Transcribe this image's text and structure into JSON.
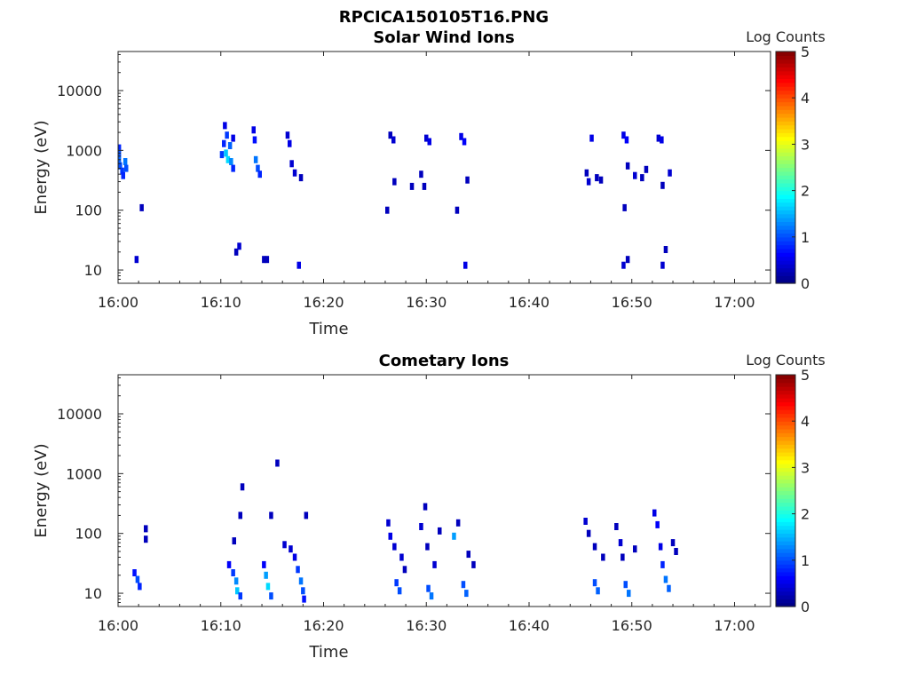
{
  "figure_title": "RPCICA150105T16.PNG",
  "chart_data": [
    {
      "type": "heatmap",
      "title": "Solar Wind Ions",
      "xlabel": "Time",
      "ylabel": "Energy (eV)",
      "x_ticks": [
        "16:00",
        "16:10",
        "16:20",
        "16:30",
        "16:40",
        "16:50",
        "17:00"
      ],
      "x_range_minutes": [
        0,
        63.5
      ],
      "y_scale": "log",
      "y_ticks": [
        "10",
        "100",
        "1000",
        "10000"
      ],
      "y_range": [
        6,
        45000
      ],
      "colorbar": {
        "label": "Log Counts",
        "range": [
          0,
          5
        ],
        "ticks": [
          "0",
          "1",
          "2",
          "3",
          "4",
          "5"
        ]
      },
      "grid": false,
      "cells": [
        {
          "t": 0.1,
          "e": 1100,
          "v": 0.8
        },
        {
          "t": 0.1,
          "e": 900,
          "v": 1.0
        },
        {
          "t": 0.1,
          "e": 700,
          "v": 1.1
        },
        {
          "t": 0.2,
          "e": 550,
          "v": 1.0
        },
        {
          "t": 0.4,
          "e": 450,
          "v": 0.9
        },
        {
          "t": 0.5,
          "e": 380,
          "v": 0.8
        },
        {
          "t": 0.7,
          "e": 650,
          "v": 1.2
        },
        {
          "t": 0.8,
          "e": 500,
          "v": 1.0
        },
        {
          "t": 2.3,
          "e": 110,
          "v": 0.3
        },
        {
          "t": 1.8,
          "e": 15,
          "v": 0.4
        },
        {
          "t": 10.1,
          "e": 850,
          "v": 0.9
        },
        {
          "t": 10.3,
          "e": 1300,
          "v": 0.8
        },
        {
          "t": 10.4,
          "e": 2600,
          "v": 0.5
        },
        {
          "t": 10.5,
          "e": 900,
          "v": 1.6
        },
        {
          "t": 10.6,
          "e": 1800,
          "v": 0.9
        },
        {
          "t": 10.7,
          "e": 700,
          "v": 1.7
        },
        {
          "t": 10.9,
          "e": 1200,
          "v": 1.1
        },
        {
          "t": 11.0,
          "e": 650,
          "v": 1.3
        },
        {
          "t": 11.2,
          "e": 500,
          "v": 0.8
        },
        {
          "t": 11.2,
          "e": 1600,
          "v": 0.5
        },
        {
          "t": 11.5,
          "e": 20,
          "v": 0.3
        },
        {
          "t": 11.8,
          "e": 25,
          "v": 0.4
        },
        {
          "t": 13.2,
          "e": 2200,
          "v": 0.5
        },
        {
          "t": 13.3,
          "e": 1500,
          "v": 0.7
        },
        {
          "t": 13.4,
          "e": 700,
          "v": 1.2
        },
        {
          "t": 13.6,
          "e": 500,
          "v": 1.0
        },
        {
          "t": 13.8,
          "e": 400,
          "v": 0.8
        },
        {
          "t": 14.2,
          "e": 15,
          "v": 0.3
        },
        {
          "t": 14.5,
          "e": 15,
          "v": 0.3
        },
        {
          "t": 16.5,
          "e": 1800,
          "v": 0.4
        },
        {
          "t": 16.7,
          "e": 1300,
          "v": 0.5
        },
        {
          "t": 16.9,
          "e": 600,
          "v": 0.4
        },
        {
          "t": 17.2,
          "e": 420,
          "v": 0.4
        },
        {
          "t": 17.6,
          "e": 12,
          "v": 0.5
        },
        {
          "t": 17.8,
          "e": 350,
          "v": 0.3
        },
        {
          "t": 26.2,
          "e": 100,
          "v": 0.3
        },
        {
          "t": 26.5,
          "e": 1800,
          "v": 0.3
        },
        {
          "t": 26.8,
          "e": 1500,
          "v": 0.4
        },
        {
          "t": 26.9,
          "e": 300,
          "v": 0.3
        },
        {
          "t": 28.6,
          "e": 250,
          "v": 0.3
        },
        {
          "t": 29.5,
          "e": 400,
          "v": 0.3
        },
        {
          "t": 29.8,
          "e": 250,
          "v": 0.3
        },
        {
          "t": 30.0,
          "e": 1600,
          "v": 0.4
        },
        {
          "t": 30.3,
          "e": 1400,
          "v": 0.5
        },
        {
          "t": 33.0,
          "e": 100,
          "v": 0.3
        },
        {
          "t": 33.4,
          "e": 1700,
          "v": 0.5
        },
        {
          "t": 33.7,
          "e": 1400,
          "v": 0.6
        },
        {
          "t": 34.0,
          "e": 320,
          "v": 0.3
        },
        {
          "t": 33.8,
          "e": 12,
          "v": 0.5
        },
        {
          "t": 45.6,
          "e": 420,
          "v": 0.3
        },
        {
          "t": 45.8,
          "e": 300,
          "v": 0.4
        },
        {
          "t": 46.1,
          "e": 1600,
          "v": 0.5
        },
        {
          "t": 46.6,
          "e": 350,
          "v": 0.3
        },
        {
          "t": 47.0,
          "e": 320,
          "v": 0.3
        },
        {
          "t": 49.2,
          "e": 1800,
          "v": 0.5
        },
        {
          "t": 49.5,
          "e": 1500,
          "v": 0.6
        },
        {
          "t": 49.6,
          "e": 550,
          "v": 0.3
        },
        {
          "t": 49.3,
          "e": 110,
          "v": 0.3
        },
        {
          "t": 49.2,
          "e": 12,
          "v": 0.4
        },
        {
          "t": 49.6,
          "e": 15,
          "v": 0.3
        },
        {
          "t": 50.3,
          "e": 380,
          "v": 0.4
        },
        {
          "t": 51.0,
          "e": 350,
          "v": 0.3
        },
        {
          "t": 51.4,
          "e": 480,
          "v": 0.3
        },
        {
          "t": 52.6,
          "e": 1600,
          "v": 0.4
        },
        {
          "t": 52.9,
          "e": 1500,
          "v": 0.5
        },
        {
          "t": 53.0,
          "e": 260,
          "v": 0.3
        },
        {
          "t": 53.0,
          "e": 12,
          "v": 0.4
        },
        {
          "t": 53.3,
          "e": 22,
          "v": 0.3
        },
        {
          "t": 53.7,
          "e": 420,
          "v": 0.4
        }
      ]
    },
    {
      "type": "heatmap",
      "title": "Cometary Ions",
      "xlabel": "Time",
      "ylabel": "Energy (eV)",
      "x_ticks": [
        "16:00",
        "16:10",
        "16:20",
        "16:30",
        "16:40",
        "16:50",
        "17:00"
      ],
      "x_range_minutes": [
        0,
        63.5
      ],
      "y_scale": "log",
      "y_ticks": [
        "10",
        "100",
        "1000",
        "10000"
      ],
      "y_range": [
        6,
        45000
      ],
      "colorbar": {
        "label": "Log Counts",
        "range": [
          0,
          5
        ],
        "ticks": [
          "0",
          "1",
          "2",
          "3",
          "4",
          "5"
        ]
      },
      "grid": false,
      "cells": [
        {
          "t": 1.6,
          "e": 22,
          "v": 0.7
        },
        {
          "t": 1.9,
          "e": 17,
          "v": 1.0
        },
        {
          "t": 2.1,
          "e": 13,
          "v": 0.8
        },
        {
          "t": 2.7,
          "e": 120,
          "v": 0.3
        },
        {
          "t": 2.7,
          "e": 80,
          "v": 0.3
        },
        {
          "t": 10.8,
          "e": 30,
          "v": 0.6
        },
        {
          "t": 11.2,
          "e": 22,
          "v": 0.9
        },
        {
          "t": 11.5,
          "e": 16,
          "v": 1.3
        },
        {
          "t": 11.6,
          "e": 11,
          "v": 1.6
        },
        {
          "t": 11.3,
          "e": 75,
          "v": 0.3
        },
        {
          "t": 11.9,
          "e": 9,
          "v": 0.9
        },
        {
          "t": 12.1,
          "e": 600,
          "v": 0.3
        },
        {
          "t": 11.9,
          "e": 200,
          "v": 0.3
        },
        {
          "t": 14.2,
          "e": 30,
          "v": 0.6
        },
        {
          "t": 14.4,
          "e": 20,
          "v": 1.4
        },
        {
          "t": 14.6,
          "e": 13,
          "v": 1.7
        },
        {
          "t": 14.9,
          "e": 9,
          "v": 1.0
        },
        {
          "t": 14.9,
          "e": 200,
          "v": 0.3
        },
        {
          "t": 15.5,
          "e": 1500,
          "v": 0.3
        },
        {
          "t": 16.2,
          "e": 65,
          "v": 0.4
        },
        {
          "t": 16.8,
          "e": 55,
          "v": 0.4
        },
        {
          "t": 17.2,
          "e": 40,
          "v": 0.5
        },
        {
          "t": 17.5,
          "e": 25,
          "v": 0.9
        },
        {
          "t": 17.8,
          "e": 16,
          "v": 1.2
        },
        {
          "t": 18.0,
          "e": 11,
          "v": 1.0
        },
        {
          "t": 18.1,
          "e": 8,
          "v": 0.7
        },
        {
          "t": 18.3,
          "e": 200,
          "v": 0.3
        },
        {
          "t": 26.3,
          "e": 150,
          "v": 0.4
        },
        {
          "t": 26.5,
          "e": 90,
          "v": 0.5
        },
        {
          "t": 26.9,
          "e": 60,
          "v": 0.4
        },
        {
          "t": 27.1,
          "e": 15,
          "v": 0.9
        },
        {
          "t": 27.4,
          "e": 11,
          "v": 1.0
        },
        {
          "t": 27.6,
          "e": 40,
          "v": 0.4
        },
        {
          "t": 27.9,
          "e": 25,
          "v": 0.3
        },
        {
          "t": 29.5,
          "e": 130,
          "v": 0.4
        },
        {
          "t": 29.9,
          "e": 280,
          "v": 0.3
        },
        {
          "t": 30.1,
          "e": 60,
          "v": 0.3
        },
        {
          "t": 30.2,
          "e": 12,
          "v": 1.0
        },
        {
          "t": 30.5,
          "e": 9,
          "v": 1.2
        },
        {
          "t": 30.8,
          "e": 30,
          "v": 0.4
        },
        {
          "t": 31.3,
          "e": 110,
          "v": 0.3
        },
        {
          "t": 32.7,
          "e": 90,
          "v": 1.4
        },
        {
          "t": 33.1,
          "e": 150,
          "v": 0.3
        },
        {
          "t": 33.6,
          "e": 14,
          "v": 1.0
        },
        {
          "t": 33.9,
          "e": 10,
          "v": 1.1
        },
        {
          "t": 34.1,
          "e": 45,
          "v": 0.3
        },
        {
          "t": 34.6,
          "e": 30,
          "v": 0.3
        },
        {
          "t": 45.5,
          "e": 160,
          "v": 0.4
        },
        {
          "t": 45.8,
          "e": 100,
          "v": 0.3
        },
        {
          "t": 46.4,
          "e": 60,
          "v": 0.3
        },
        {
          "t": 46.4,
          "e": 15,
          "v": 1.0
        },
        {
          "t": 46.7,
          "e": 11,
          "v": 1.1
        },
        {
          "t": 47.2,
          "e": 40,
          "v": 0.3
        },
        {
          "t": 48.5,
          "e": 130,
          "v": 0.3
        },
        {
          "t": 48.9,
          "e": 70,
          "v": 0.4
        },
        {
          "t": 49.1,
          "e": 40,
          "v": 0.3
        },
        {
          "t": 49.4,
          "e": 14,
          "v": 1.0
        },
        {
          "t": 49.7,
          "e": 10,
          "v": 1.2
        },
        {
          "t": 50.3,
          "e": 55,
          "v": 0.3
        },
        {
          "t": 52.2,
          "e": 220,
          "v": 0.5
        },
        {
          "t": 52.5,
          "e": 140,
          "v": 0.6
        },
        {
          "t": 52.8,
          "e": 60,
          "v": 0.5
        },
        {
          "t": 53.0,
          "e": 30,
          "v": 0.8
        },
        {
          "t": 53.3,
          "e": 17,
          "v": 1.2
        },
        {
          "t": 53.6,
          "e": 12,
          "v": 1.1
        },
        {
          "t": 54.0,
          "e": 70,
          "v": 0.3
        },
        {
          "t": 54.3,
          "e": 50,
          "v": 0.3
        }
      ]
    }
  ]
}
